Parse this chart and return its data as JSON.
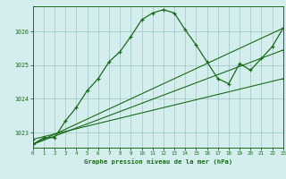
{
  "title": "Graphe pression niveau de la mer (hPa)",
  "bg_color": "#d4eeee",
  "grid_color": "#aacccc",
  "line_color": "#1a6b1a",
  "xlim": [
    0,
    23
  ],
  "ylim": [
    1022.55,
    1026.75
  ],
  "yticks": [
    1023,
    1024,
    1025,
    1026
  ],
  "xticks": [
    0,
    1,
    2,
    3,
    4,
    5,
    6,
    7,
    8,
    9,
    10,
    11,
    12,
    13,
    14,
    15,
    16,
    17,
    18,
    19,
    20,
    21,
    22,
    23
  ],
  "series1_x": [
    0,
    1,
    2,
    3,
    4,
    5,
    6,
    7,
    8,
    9,
    10,
    11,
    12,
    13,
    14,
    15,
    16,
    17,
    18,
    19,
    20,
    21,
    22,
    23
  ],
  "series1_y": [
    1022.65,
    1022.85,
    1022.85,
    1023.35,
    1023.75,
    1024.25,
    1024.6,
    1025.1,
    1025.4,
    1025.85,
    1026.35,
    1026.55,
    1026.65,
    1026.55,
    1026.05,
    1025.6,
    1025.1,
    1024.6,
    1024.45,
    1025.05,
    1024.85,
    1025.2,
    1025.55,
    1026.1
  ],
  "series2_x": [
    0,
    23
  ],
  "series2_y": [
    1022.65,
    1026.1
  ],
  "series3_x": [
    0,
    23
  ],
  "series3_y": [
    1022.65,
    1025.45
  ],
  "series4_x": [
    0,
    23
  ],
  "series4_y": [
    1022.8,
    1024.6
  ]
}
